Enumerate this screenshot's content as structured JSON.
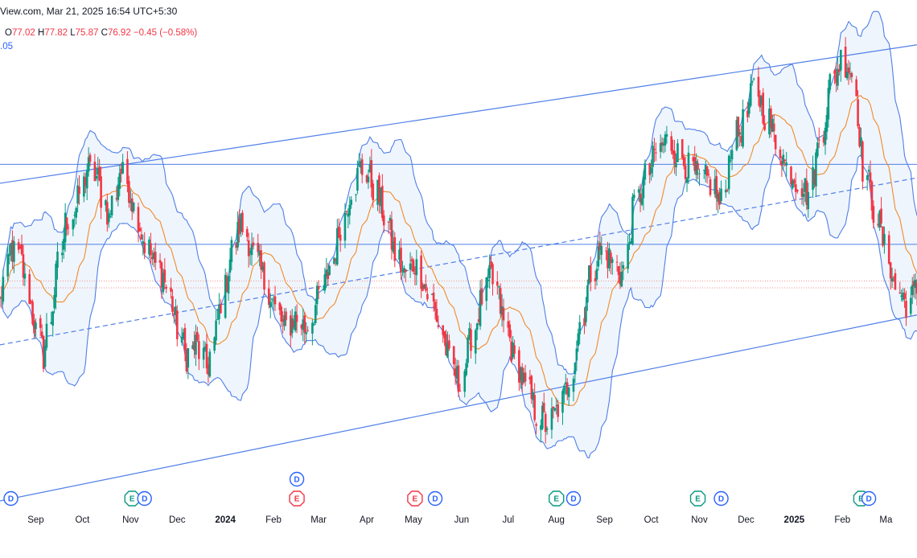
{
  "header": {
    "source_text": "View.com, Mar 21, 2025 16:54 UTC+5:30"
  },
  "ohlc": {
    "o_label": "O",
    "o_value": "77.02",
    "h_label": "H",
    "h_value": "77.82",
    "l_label": "L",
    "l_value": "75.87",
    "c_label": "C",
    "c_value": "76.92",
    "change": "−0.45 (−0.58%)"
  },
  "indicator": {
    "value_fragment": ".05"
  },
  "colors": {
    "up": "#089981",
    "down": "#f23645",
    "band_line": "#4f7fe8",
    "band_fill": "#e8f1fb",
    "basis": "#f08a2c",
    "channel": "#4f7fe8",
    "dotted": "#f2938f"
  },
  "chart_data": {
    "type": "candlestick",
    "title": "",
    "x_axis_labels": [
      "Sep",
      "Oct",
      "Nov",
      "Dec",
      "2024",
      "Feb",
      "Mar",
      "Apr",
      "May",
      "Jun",
      "Jul",
      "Aug",
      "Sep",
      "Oct",
      "Nov",
      "Dec",
      "2025",
      "Feb",
      "Ma"
    ],
    "x_start_date": "2023-08-09",
    "x_end_date": "2025-03-21",
    "y_range": [
      63.0,
      97.0
    ],
    "approx_closes_weekly": [
      76,
      80,
      79,
      75,
      72,
      77,
      82,
      83,
      86,
      85,
      82,
      86,
      84,
      81,
      79,
      78,
      75,
      72,
      73,
      71,
      75,
      79,
      82,
      80,
      78,
      76,
      74,
      75,
      74,
      76,
      78,
      81,
      84,
      86,
      85,
      83,
      80,
      78,
      79,
      77,
      75,
      72,
      70,
      73,
      76,
      78,
      75,
      72,
      70,
      68,
      67,
      68,
      70,
      74,
      78,
      80,
      79,
      78,
      83,
      85,
      87,
      88,
      87,
      86,
      85,
      85,
      83,
      88,
      89,
      92,
      90,
      88,
      86,
      85,
      84,
      88,
      92,
      94,
      93,
      86,
      83,
      80,
      77,
      76,
      77
    ],
    "bollinger": {
      "period": 20,
      "std_dev": 2,
      "basis_color": "orange",
      "band_color": "blue"
    },
    "horizontal_lines": [
      {
        "price": 86.2,
        "style": "solid"
      },
      {
        "price": 80.3,
        "style": "solid"
      },
      {
        "price": 77.6,
        "style": "dotted"
      },
      {
        "price": 77.1,
        "style": "dotted"
      }
    ],
    "regression_channel": {
      "start_date": "2023-08-09",
      "end_date": "2025-03-21",
      "upper": [
        84.8,
        95.0
      ],
      "mid": [
        72.9,
        85.2
      ],
      "lower": [
        61.4,
        75.1
      ]
    },
    "events": [
      {
        "date": "2023-08-16",
        "type": "D"
      },
      {
        "date": "2023-11-02",
        "type": "E",
        "sentiment": "positive"
      },
      {
        "date": "2023-11-10",
        "type": "D"
      },
      {
        "date": "2024-02-16",
        "type": "E",
        "sentiment": "negative"
      },
      {
        "date": "2024-02-16",
        "type": "D"
      },
      {
        "date": "2024-05-02",
        "type": "E",
        "sentiment": "negative"
      },
      {
        "date": "2024-05-15",
        "type": "D"
      },
      {
        "date": "2024-08-01",
        "type": "E",
        "sentiment": "positive"
      },
      {
        "date": "2024-08-12",
        "type": "D"
      },
      {
        "date": "2024-10-31",
        "type": "E",
        "sentiment": "positive"
      },
      {
        "date": "2024-11-15",
        "type": "D"
      },
      {
        "date": "2025-02-13",
        "type": "E",
        "sentiment": "positive"
      },
      {
        "date": "2025-02-18",
        "type": "D"
      }
    ]
  }
}
